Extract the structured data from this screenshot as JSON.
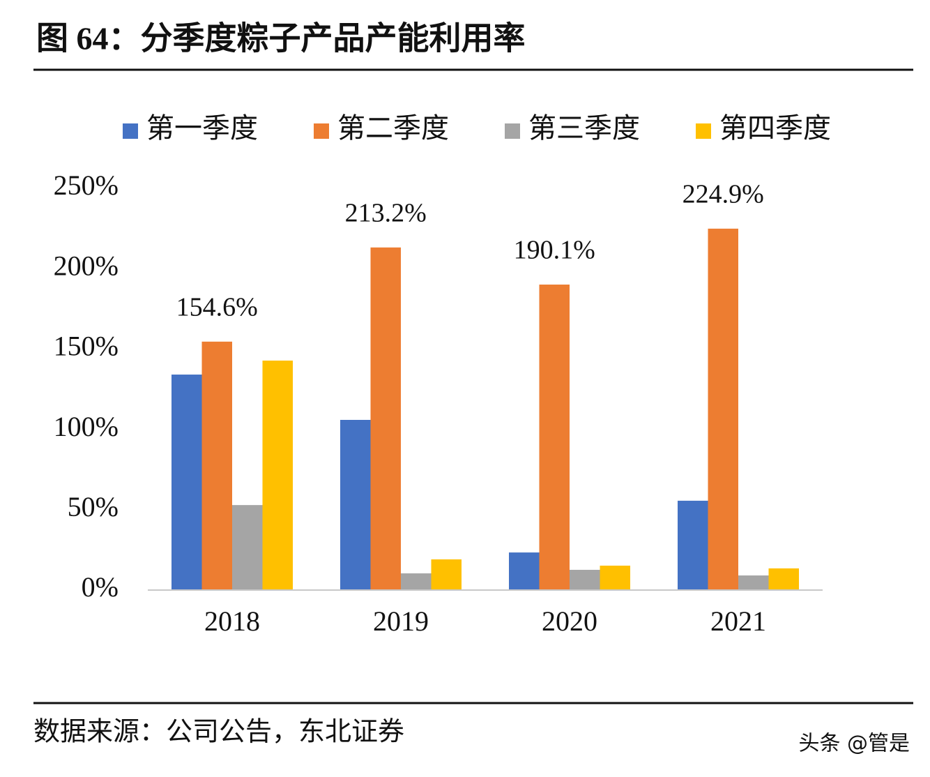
{
  "chart_data": {
    "type": "bar",
    "title": "图 64：分季度粽子产品产能利用率",
    "categories": [
      "2018",
      "2019",
      "2020",
      "2021"
    ],
    "series": [
      {
        "name": "第一季度",
        "color": "#4472c4",
        "values": [
          134.1,
          105.9,
          23.4,
          55.6
        ]
      },
      {
        "name": "第二季度",
        "color": "#ed7d31",
        "values": [
          154.6,
          213.2,
          190.1,
          224.9
        ],
        "value_labels": [
          "154.6%",
          "213.2%",
          "190.1%",
          "224.9%"
        ]
      },
      {
        "name": "第三季度",
        "color": "#a5a5a5",
        "values": [
          52.9,
          10.4,
          12.6,
          9.1
        ]
      },
      {
        "name": "第四季度",
        "color": "#ffc000",
        "values": [
          142.8,
          19.1,
          15.2,
          13.5
        ]
      }
    ],
    "ylim": [
      0,
      250
    ],
    "yticks": [
      {
        "value": 0,
        "label": "0%"
      },
      {
        "value": 50,
        "label": "50%"
      },
      {
        "value": 100,
        "label": "100%"
      },
      {
        "value": 150,
        "label": "150%"
      },
      {
        "value": 200,
        "label": "200%"
      },
      {
        "value": 250,
        "label": "250%"
      }
    ],
    "grid": false,
    "legend": "top"
  },
  "source": "数据来源：公司公告，东北证券",
  "watermark": "头条 @管是"
}
